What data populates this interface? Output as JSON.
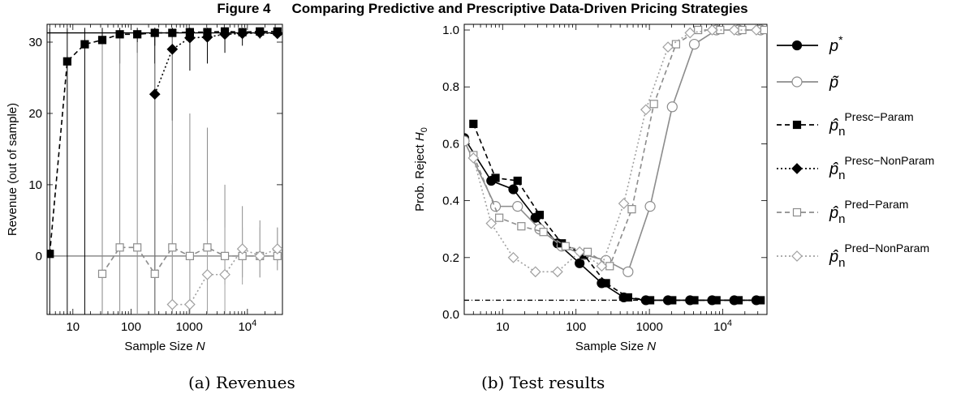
{
  "figure": {
    "number": "Figure 4",
    "title": "Comparing Predictive and Prescriptive Data-Driven Pricing Strategies"
  },
  "legend": {
    "items": [
      {
        "key": "pstar",
        "main": "p",
        "sup": "*"
      },
      {
        "key": "ptilde",
        "main": "p̃",
        "sup": ""
      },
      {
        "key": "presc_param",
        "main": "p̂",
        "sub": "n",
        "sup": "Presc−Param"
      },
      {
        "key": "presc_nonparam",
        "main": "p̂",
        "sub": "n",
        "sup": "Presc−NonParam"
      },
      {
        "key": "pred_param",
        "main": "p̂",
        "sub": "n",
        "sup": "Pred−Param"
      },
      {
        "key": "pred_nonparam",
        "main": "p̂",
        "sub": "n",
        "sup": "Pred−NonParam"
      }
    ]
  },
  "styles": {
    "presc_param": {
      "color": "#000000",
      "dash": "6,4",
      "marker": "square-filled"
    },
    "presc_nonparam": {
      "color": "#000000",
      "dash": "2,3",
      "marker": "diamond-filled"
    },
    "pred_param": {
      "color": "#8c8c8c",
      "dash": "6,4",
      "marker": "square-open"
    },
    "pred_nonparam": {
      "color": "#a0a0a0",
      "dash": "2,3",
      "marker": "diamond-open"
    },
    "pstar": {
      "color": "#000000",
      "dash": "",
      "marker": "circle-filled"
    },
    "ptilde": {
      "color": "#8c8c8c",
      "dash": "",
      "marker": "circle-open"
    }
  },
  "chart_data": [
    {
      "type": "line",
      "caption": "(a) Revenues",
      "xlabel": "Sample Size N",
      "ylabel": "Revenue (out of sample)",
      "xscale": "log",
      "xlim": [
        3.6,
        40000
      ],
      "ylim": [
        -8.2,
        32.5
      ],
      "xticks": [
        {
          "value": 10,
          "label": "10"
        },
        {
          "value": 100,
          "label": "100"
        },
        {
          "value": 1000,
          "label": "1000"
        },
        {
          "value": 10000,
          "label": "10",
          "sup": "4"
        }
      ],
      "yticks": [
        0,
        10,
        20,
        30
      ],
      "reference_lines": [
        {
          "name": "optimal-revenue",
          "y": 31.3,
          "color": "#000000"
        },
        {
          "name": "zero-revenue",
          "y": 0,
          "color": "#8c8c8c"
        }
      ],
      "series": [
        {
          "key": "presc_param",
          "x": [
            4,
            8,
            16,
            32,
            64,
            128,
            256,
            512,
            1024,
            2048,
            4096,
            8192,
            16384,
            32768
          ],
          "y": [
            0.3,
            27.3,
            29.7,
            30.3,
            31.1,
            31.1,
            31.3,
            31.3,
            31.4,
            31.4,
            31.5,
            31.4,
            31.5,
            31.5
          ],
          "err_low": [
            -8.2,
            -8.2,
            -8.2,
            -8.2,
            27,
            28.5,
            29.5,
            30.5,
            30.5,
            31,
            31,
            31,
            31.2,
            31.2
          ],
          "err_high": [
            32,
            32,
            32,
            32,
            32,
            32,
            32,
            32,
            32,
            32,
            32,
            32,
            32,
            32
          ]
        },
        {
          "key": "presc_nonparam",
          "x": [
            256,
            512,
            1024,
            2048,
            4096,
            8192,
            16384,
            32768
          ],
          "y": [
            22.7,
            29.0,
            30.6,
            30.7,
            31.1,
            31.2,
            31.3,
            31.2
          ],
          "err_low": [
            -8.2,
            19,
            26,
            27,
            28.5,
            29.5,
            30.5,
            30.8
          ],
          "err_high": [
            32,
            32,
            32,
            32,
            32,
            32,
            32,
            31.8
          ]
        },
        {
          "key": "pred_param",
          "x": [
            32,
            64,
            128,
            256,
            512,
            1024,
            2048,
            4096,
            8192,
            16384,
            32768
          ],
          "y": [
            -2.5,
            1.2,
            1.2,
            -2.5,
            1.2,
            0,
            1.2,
            0,
            0,
            0,
            0
          ],
          "err_low": [
            -8.2,
            -8.2,
            -8.2,
            -8.2,
            -8.2,
            -8.2,
            -8.2,
            -4,
            -3,
            -3,
            -2
          ],
          "err_high": [
            30,
            31,
            30,
            27,
            31,
            20,
            18,
            10,
            7,
            5,
            4
          ]
        },
        {
          "key": "pred_nonparam",
          "x": [
            512,
            1024,
            2048,
            4096,
            8192,
            16384,
            32768
          ],
          "y": [
            -6.8,
            -6.8,
            -2.6,
            -2.6,
            1.0,
            0,
            1.0
          ],
          "err_low": [
            -8.2,
            -8.2,
            -8.2,
            -8.2,
            -4,
            -3,
            -1
          ],
          "err_high": [
            10,
            7,
            5,
            4,
            4,
            4,
            4
          ]
        }
      ]
    },
    {
      "type": "line",
      "caption": "(b) Test results",
      "xlabel": "Sample Size N",
      "ylabel": "Prob. Reject H0",
      "xscale": "log",
      "xlim": [
        3.0,
        40000
      ],
      "ylim": [
        0,
        1.02
      ],
      "xticks": [
        {
          "value": 10,
          "label": "10"
        },
        {
          "value": 100,
          "label": "100"
        },
        {
          "value": 1000,
          "label": "1000"
        },
        {
          "value": 10000,
          "label": "10",
          "sup": "4"
        }
      ],
      "yticks": [
        0.0,
        0.2,
        0.4,
        0.6,
        0.8,
        1.0
      ],
      "reference_lines": [
        {
          "name": "significance-level",
          "y": 0.05,
          "color": "#000000",
          "dash": "6,3,1,3"
        }
      ],
      "series": [
        {
          "key": "pstar",
          "x": [
            3,
            7,
            14,
            28,
            56,
            112,
            224,
            448,
            896,
            1792,
            3584,
            7168,
            14336,
            28672
          ],
          "y": [
            0.62,
            0.47,
            0.44,
            0.34,
            0.25,
            0.18,
            0.11,
            0.06,
            0.05,
            0.05,
            0.05,
            0.05,
            0.05,
            0.05
          ]
        },
        {
          "key": "ptilde",
          "x": [
            3,
            8,
            16,
            32,
            64,
            128,
            256,
            512,
            1024,
            2048,
            4096,
            8192,
            16384,
            32768
          ],
          "y": [
            0.61,
            0.38,
            0.38,
            0.3,
            0.24,
            0.21,
            0.19,
            0.15,
            0.38,
            0.73,
            0.95,
            1.0,
            1.0,
            1.0
          ]
        },
        {
          "key": "presc_param",
          "x": [
            4,
            8,
            16,
            32,
            64,
            128,
            256,
            512,
            1024,
            2048,
            4096,
            8192,
            16384,
            32768
          ],
          "y": [
            0.67,
            0.48,
            0.47,
            0.35,
            0.25,
            0.21,
            0.11,
            0.06,
            0.05,
            0.05,
            0.05,
            0.05,
            0.05,
            0.05
          ]
        },
        {
          "key": "pred_param",
          "x": [
            4,
            9,
            18,
            36,
            72,
            144,
            288,
            576,
            1152,
            2304,
            4608,
            9216,
            18432,
            36864
          ],
          "y": [
            0.56,
            0.34,
            0.31,
            0.29,
            0.24,
            0.22,
            0.17,
            0.37,
            0.74,
            0.95,
            1.0,
            1.0,
            1.0,
            1.0
          ]
        },
        {
          "key": "pred_nonparam",
          "x": [
            4,
            7,
            14,
            28,
            56,
            112,
            224,
            448,
            896,
            1792,
            3584,
            7168,
            14336,
            28672
          ],
          "y": [
            0.55,
            0.32,
            0.2,
            0.15,
            0.15,
            0.22,
            0.17,
            0.39,
            0.72,
            0.94,
            0.99,
            1.0,
            1.0,
            1.0
          ]
        }
      ]
    }
  ]
}
